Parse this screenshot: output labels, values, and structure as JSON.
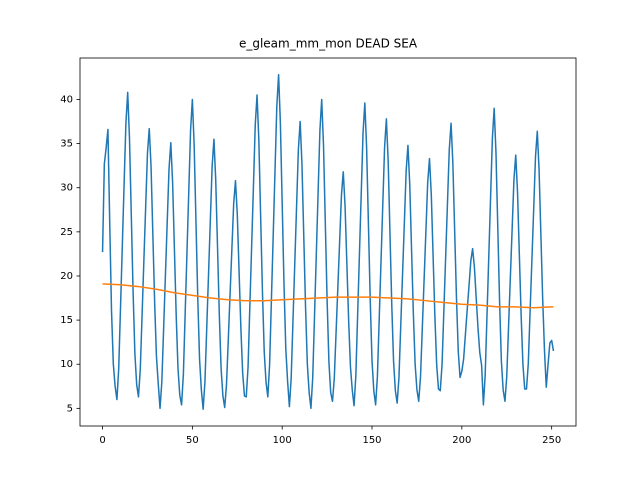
{
  "chart_data": {
    "type": "line",
    "title": "e_gleam_mm_mon DEAD SEA",
    "xlim": [
      -12.55,
      263.55
    ],
    "xticks": [
      0,
      50,
      100,
      150,
      200,
      250
    ],
    "ylim": [
      3.0,
      44.7
    ],
    "yticks": [
      5,
      10,
      15,
      20,
      25,
      30,
      35,
      40
    ],
    "series": [
      {
        "color": "#1f77b4",
        "x": [
          0,
          1,
          2,
          3,
          4,
          5,
          6,
          7,
          8,
          9,
          10,
          11,
          12,
          13,
          14,
          15,
          16,
          17,
          18,
          19,
          20,
          21,
          22,
          23,
          24,
          25,
          26,
          27,
          28,
          29,
          30,
          31,
          32,
          33,
          34,
          35,
          36,
          37,
          38,
          39,
          40,
          41,
          42,
          43,
          44,
          45,
          46,
          47,
          48,
          49,
          50,
          51,
          52,
          53,
          54,
          55,
          56,
          57,
          58,
          59,
          60,
          61,
          62,
          63,
          64,
          65,
          66,
          67,
          68,
          69,
          70,
          71,
          72,
          73,
          74,
          75,
          76,
          77,
          78,
          79,
          80,
          81,
          82,
          83,
          84,
          85,
          86,
          87,
          88,
          89,
          90,
          91,
          92,
          93,
          94,
          95,
          96,
          97,
          98,
          99,
          100,
          101,
          102,
          103,
          104,
          105,
          106,
          107,
          108,
          109,
          110,
          111,
          112,
          113,
          114,
          115,
          116,
          117,
          118,
          119,
          120,
          121,
          122,
          123,
          124,
          125,
          126,
          127,
          128,
          129,
          130,
          131,
          132,
          133,
          134,
          135,
          136,
          137,
          138,
          139,
          140,
          141,
          142,
          143,
          144,
          145,
          146,
          147,
          148,
          149,
          150,
          151,
          152,
          153,
          154,
          155,
          156,
          157,
          158,
          159,
          160,
          161,
          162,
          163,
          164,
          165,
          166,
          167,
          168,
          169,
          170,
          171,
          172,
          173,
          174,
          175,
          176,
          177,
          178,
          179,
          180,
          181,
          182,
          183,
          184,
          185,
          186,
          187,
          188,
          189,
          190,
          191,
          192,
          193,
          194,
          195,
          196,
          197,
          198,
          199,
          200,
          201,
          202,
          203,
          204,
          205,
          206,
          207,
          208,
          209,
          210,
          211,
          212,
          213,
          214,
          215,
          216,
          217,
          218,
          219,
          220,
          221,
          222,
          223,
          224,
          225,
          226,
          227,
          228,
          229,
          230,
          231,
          232,
          233,
          234,
          235,
          236,
          237,
          238,
          239,
          240,
          241,
          242,
          243,
          244,
          245,
          246,
          247,
          248,
          249,
          250,
          251
        ],
        "values": [
          22.7,
          32.7,
          34.5,
          36.6,
          26.0,
          16.0,
          10.0,
          7.5,
          6.0,
          9.5,
          16.4,
          23.4,
          30.4,
          37.3,
          40.8,
          35.6,
          26.9,
          18.2,
          11.2,
          7.7,
          6.3,
          9.4,
          15.5,
          21.7,
          27.8,
          33.9,
          36.7,
          32.4,
          24.7,
          17.0,
          10.9,
          7.8,
          5.0,
          8.0,
          14.0,
          20.1,
          26.1,
          32.1,
          35.1,
          30.6,
          23.1,
          15.5,
          9.5,
          6.5,
          5.4,
          8.9,
          15.8,
          22.7,
          29.6,
          36.5,
          40.0,
          34.8,
          26.2,
          17.5,
          10.6,
          7.1,
          4.9,
          8.0,
          14.1,
          20.2,
          26.3,
          32.4,
          35.5,
          30.9,
          23.3,
          15.6,
          9.5,
          6.4,
          5.1,
          7.7,
          12.8,
          18.0,
          23.1,
          28.2,
          30.8,
          27.0,
          20.5,
          14.1,
          9.0,
          6.4,
          6.3,
          9.7,
          16.6,
          23.4,
          30.2,
          37.1,
          40.5,
          35.4,
          26.8,
          18.3,
          11.4,
          8.0,
          6.3,
          10.0,
          17.3,
          24.6,
          31.9,
          39.2,
          42.8,
          37.3,
          28.2,
          19.1,
          11.8,
          8.1,
          5.2,
          8.4,
          14.9,
          21.4,
          27.8,
          34.3,
          37.5,
          32.7,
          24.6,
          16.5,
          10.0,
          6.8,
          5.0,
          8.5,
          15.5,
          22.5,
          29.5,
          36.5,
          40.0,
          34.8,
          26.0,
          17.3,
          10.3,
          6.8,
          5.8,
          8.4,
          13.6,
          18.8,
          24.0,
          29.2,
          31.8,
          27.9,
          21.4,
          14.9,
          9.7,
          7.1,
          5.3,
          8.7,
          15.6,
          22.5,
          29.3,
          36.2,
          39.6,
          34.5,
          25.9,
          17.3,
          10.4,
          7.0,
          5.4,
          8.6,
          15.1,
          21.6,
          28.1,
          34.6,
          37.8,
          33.0,
          24.8,
          16.7,
          10.3,
          7.0,
          5.6,
          8.5,
          14.4,
          20.2,
          26.0,
          31.9,
          34.8,
          30.4,
          23.1,
          15.8,
          10.0,
          7.1,
          5.8,
          8.6,
          14.1,
          19.6,
          25.1,
          30.6,
          33.3,
          29.2,
          22.3,
          15.4,
          9.9,
          7.2,
          7.0,
          10.0,
          16.1,
          22.2,
          28.2,
          34.3,
          37.3,
          32.8,
          25.2,
          17.6,
          11.5,
          8.5,
          9.2,
          10.6,
          13.4,
          16.2,
          18.9,
          21.7,
          23.1,
          21.0,
          17.5,
          14.1,
          11.3,
          9.9,
          5.4,
          8.8,
          15.5,
          22.2,
          28.9,
          35.6,
          39.0,
          34.0,
          25.6,
          17.2,
          10.4,
          7.1,
          5.8,
          8.6,
          14.2,
          19.8,
          25.3,
          30.9,
          33.7,
          29.5,
          22.5,
          15.6,
          10.0,
          7.2,
          7.2,
          10.1,
          16.0,
          21.8,
          27.6,
          33.5,
          36.4,
          32.0,
          24.7,
          17.4,
          11.6,
          7.4,
          10.0,
          12.4,
          12.7,
          11.5
        ]
      },
      {
        "color": "#ff7f0e",
        "x": [
          0,
          10,
          20,
          30,
          40,
          50,
          60,
          70,
          80,
          90,
          100,
          110,
          120,
          130,
          140,
          150,
          160,
          170,
          180,
          190,
          200,
          210,
          220,
          230,
          240,
          250,
          251
        ],
        "values": [
          19.1,
          19.0,
          18.8,
          18.5,
          18.1,
          17.8,
          17.5,
          17.3,
          17.2,
          17.2,
          17.3,
          17.4,
          17.5,
          17.6,
          17.6,
          17.6,
          17.5,
          17.4,
          17.2,
          17.0,
          16.8,
          16.7,
          16.5,
          16.5,
          16.4,
          16.5,
          16.5
        ]
      }
    ]
  }
}
